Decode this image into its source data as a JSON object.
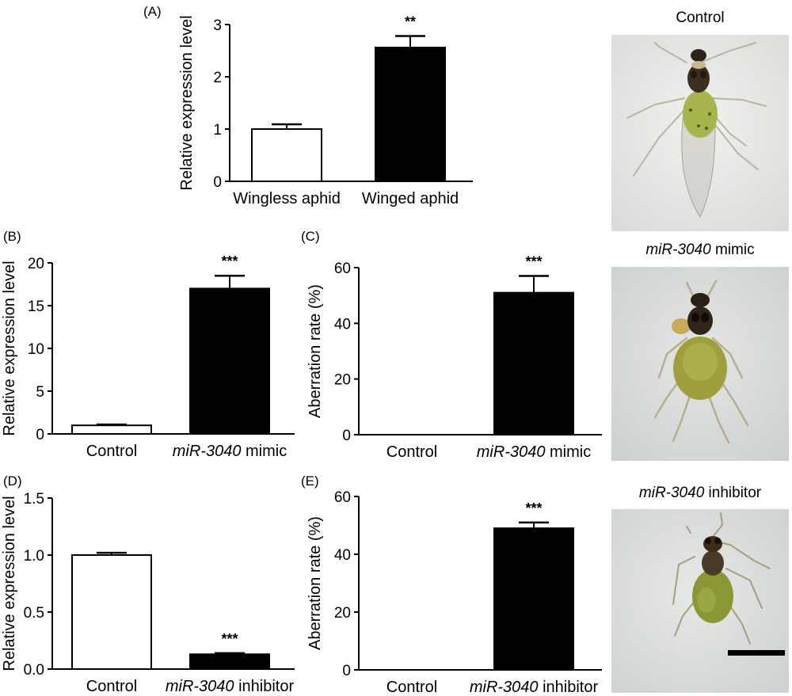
{
  "panels": {
    "A": "(A)",
    "B": "(B)",
    "C": "(C)",
    "D": "(D)",
    "E": "(E)"
  },
  "photos": {
    "control": {
      "title": "Control"
    },
    "mimic": {
      "title_italic": "miR-3040",
      "title_rest": " mimic"
    },
    "inhibitor": {
      "title_italic": "miR-3040",
      "title_rest": " inhibitor"
    }
  },
  "chart_data": [
    {
      "id": "A",
      "type": "bar",
      "ylabel": "Relative expression level",
      "ylim": [
        0,
        3
      ],
      "yticks": [
        0,
        1,
        2,
        3
      ],
      "categories": [
        {
          "text": "Wingless aphid"
        },
        {
          "text": "Winged aphid"
        }
      ],
      "values": [
        1.0,
        2.56
      ],
      "errors": [
        0.09,
        0.22
      ],
      "fills": [
        "#ffffff",
        "#000000"
      ],
      "significance": [
        "",
        "**"
      ]
    },
    {
      "id": "B",
      "type": "bar",
      "ylabel": "Relative expression level",
      "ylim": [
        0,
        20
      ],
      "yticks": [
        0,
        5,
        10,
        15,
        20
      ],
      "categories": [
        {
          "text": "Control"
        },
        {
          "italic": "miR-3040",
          "text": " mimic"
        }
      ],
      "values": [
        1.0,
        17.0
      ],
      "errors": [
        0.1,
        1.5
      ],
      "fills": [
        "#ffffff",
        "#000000"
      ],
      "significance": [
        "",
        "***"
      ]
    },
    {
      "id": "C",
      "type": "bar",
      "ylabel": "Aberration rate (%)",
      "ylim": [
        0,
        60
      ],
      "yticks": [
        0,
        20,
        40,
        60
      ],
      "categories": [
        {
          "text": "Control"
        },
        {
          "italic": "miR-3040",
          "text": " mimic"
        }
      ],
      "values": [
        0,
        51
      ],
      "errors": [
        0,
        6
      ],
      "fills": [
        "#ffffff",
        "#000000"
      ],
      "significance": [
        "",
        "***"
      ]
    },
    {
      "id": "D",
      "type": "bar",
      "ylabel": "Relative expression level",
      "ylim": [
        0,
        1.5
      ],
      "yticks": [
        "0.0",
        "0.5",
        "1.0",
        "1.5"
      ],
      "categories": [
        {
          "text": "Control"
        },
        {
          "italic": "miR-3040",
          "text": " inhibitor"
        }
      ],
      "values": [
        1.0,
        0.13
      ],
      "errors": [
        0.02,
        0.01
      ],
      "fills": [
        "#ffffff",
        "#000000"
      ],
      "significance": [
        "",
        "***"
      ]
    },
    {
      "id": "E",
      "type": "bar",
      "ylabel": "Aberration rate (%)",
      "ylim": [
        0,
        60
      ],
      "yticks": [
        0,
        20,
        40,
        60
      ],
      "categories": [
        {
          "text": "Control"
        },
        {
          "italic": "miR-3040",
          "text": " inhibitor"
        }
      ],
      "values": [
        0,
        49
      ],
      "errors": [
        0,
        2
      ],
      "fills": [
        "#ffffff",
        "#000000"
      ],
      "significance": [
        "",
        "***"
      ]
    }
  ]
}
